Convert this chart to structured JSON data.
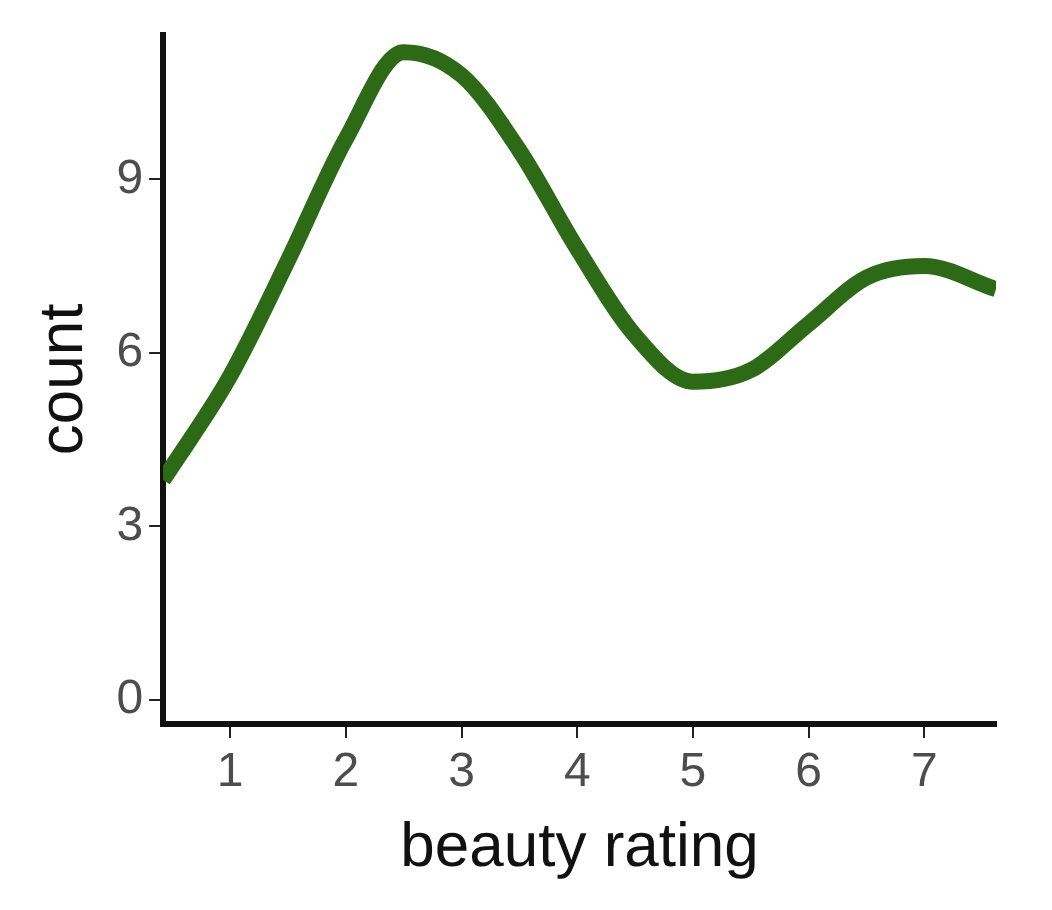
{
  "chart_data": {
    "type": "line",
    "xlabel": "beauty rating",
    "ylabel": "count",
    "xlim": [
      0.42,
      7.62
    ],
    "xticks": [
      1,
      2,
      3,
      4,
      5,
      6,
      7
    ],
    "ylim": [
      -0.42,
      11.5
    ],
    "yticks": [
      0,
      3,
      6,
      9
    ],
    "grid": false,
    "legend": false,
    "marker": "none",
    "line_style": "solid",
    "series": [
      {
        "color": "#2d6a16",
        "x": [
          0.42,
          1.0,
          1.5,
          2.0,
          2.5,
          3.0,
          3.5,
          4.0,
          4.5,
          5.0,
          5.5,
          6.0,
          6.5,
          7.0,
          7.62
        ],
        "values": [
          3.8,
          5.6,
          7.6,
          9.7,
          11.2,
          10.8,
          9.5,
          7.8,
          6.3,
          5.5,
          5.7,
          6.5,
          7.3,
          7.5,
          7.1
        ]
      }
    ]
  }
}
